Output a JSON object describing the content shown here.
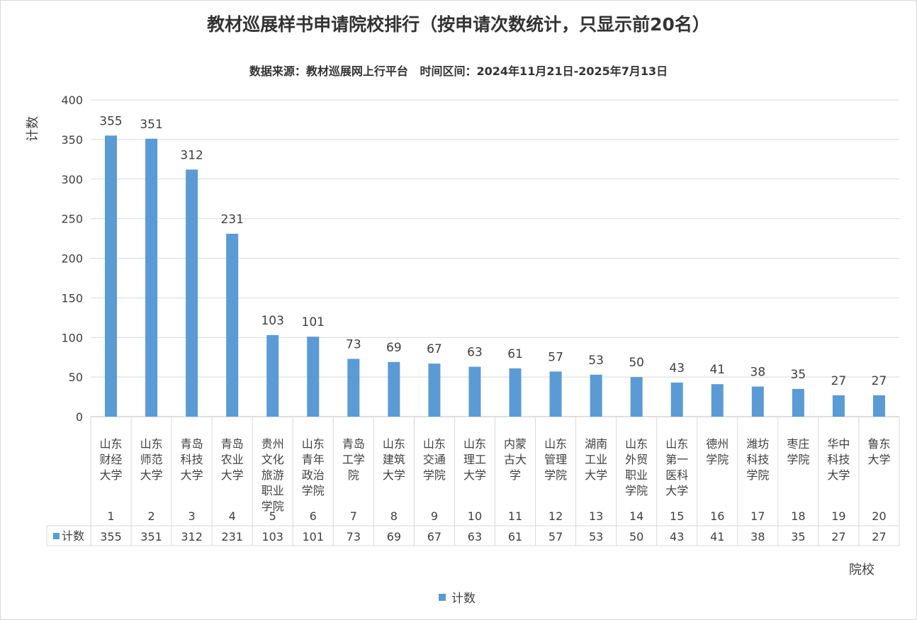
{
  "chart_data": {
    "type": "bar",
    "title": "教材巡展样书申请院校排行（按申请次数统计，只显示前20名）",
    "subtitle": "数据来源：教材巡展网上行平台   时间区间：2024年11月21日-2025年7月13日",
    "ylabel": "计数",
    "xlabel": "院校",
    "ylim": [
      0,
      400
    ],
    "yticks": [
      0,
      50,
      100,
      150,
      200,
      250,
      300,
      350,
      400
    ],
    "grid": true,
    "legend_position": "bottom",
    "color": "#5B9BD5",
    "categories": [
      {
        "name": "山东财经大学",
        "lines": [
          "山东",
          "财经",
          "大学"
        ],
        "rank": "1"
      },
      {
        "name": "山东师范大学",
        "lines": [
          "山东",
          "师范",
          "大学"
        ],
        "rank": "2"
      },
      {
        "name": "青岛科技大学",
        "lines": [
          "青岛",
          "科技",
          "大学"
        ],
        "rank": "3"
      },
      {
        "name": "青岛农业大学",
        "lines": [
          "青岛",
          "农业",
          "大学"
        ],
        "rank": "4"
      },
      {
        "name": "贵州文化旅游职业学院",
        "lines": [
          "贵州",
          "文化",
          "旅游",
          "职业",
          "学院"
        ],
        "rank": "5"
      },
      {
        "name": "山东青年政治学院",
        "lines": [
          "山东",
          "青年",
          "政治",
          "学院"
        ],
        "rank": "6"
      },
      {
        "name": "青岛工学院",
        "lines": [
          "青岛",
          "工学",
          "院"
        ],
        "rank": "7"
      },
      {
        "name": "山东建筑大学",
        "lines": [
          "山东",
          "建筑",
          "大学"
        ],
        "rank": "8"
      },
      {
        "name": "山东交通学院",
        "lines": [
          "山东",
          "交通",
          "学院"
        ],
        "rank": "9"
      },
      {
        "name": "山东理工大学",
        "lines": [
          "山东",
          "理工",
          "大学"
        ],
        "rank": "10"
      },
      {
        "name": "内蒙古大学",
        "lines": [
          "内蒙",
          "古大",
          "学"
        ],
        "rank": "11"
      },
      {
        "name": "山东管理学院",
        "lines": [
          "山东",
          "管理",
          "学院"
        ],
        "rank": "12"
      },
      {
        "name": "湖南工业大学",
        "lines": [
          "湖南",
          "工业",
          "大学"
        ],
        "rank": "13"
      },
      {
        "name": "山东外贸职业学院",
        "lines": [
          "山东",
          "外贸",
          "职业",
          "学院"
        ],
        "rank": "14"
      },
      {
        "name": "山东第一医科大学",
        "lines": [
          "山东",
          "第一",
          "医科",
          "大学"
        ],
        "rank": "15"
      },
      {
        "name": "德州学院",
        "lines": [
          "德州",
          "学院"
        ],
        "rank": "16"
      },
      {
        "name": "潍坊科技学院",
        "lines": [
          "潍坊",
          "科技",
          "学院"
        ],
        "rank": "17"
      },
      {
        "name": "枣庄学院",
        "lines": [
          "枣庄",
          "学院"
        ],
        "rank": "18"
      },
      {
        "name": "华中科技大学",
        "lines": [
          "华中",
          "科技",
          "大学"
        ],
        "rank": "19"
      },
      {
        "name": "鲁东大学",
        "lines": [
          "鲁东",
          "大学"
        ],
        "rank": "20"
      }
    ],
    "series": [
      {
        "name": "计数",
        "values": [
          355,
          351,
          312,
          231,
          103,
          101,
          73,
          69,
          67,
          63,
          61,
          57,
          53,
          50,
          43,
          41,
          38,
          35,
          27,
          27
        ]
      }
    ]
  }
}
